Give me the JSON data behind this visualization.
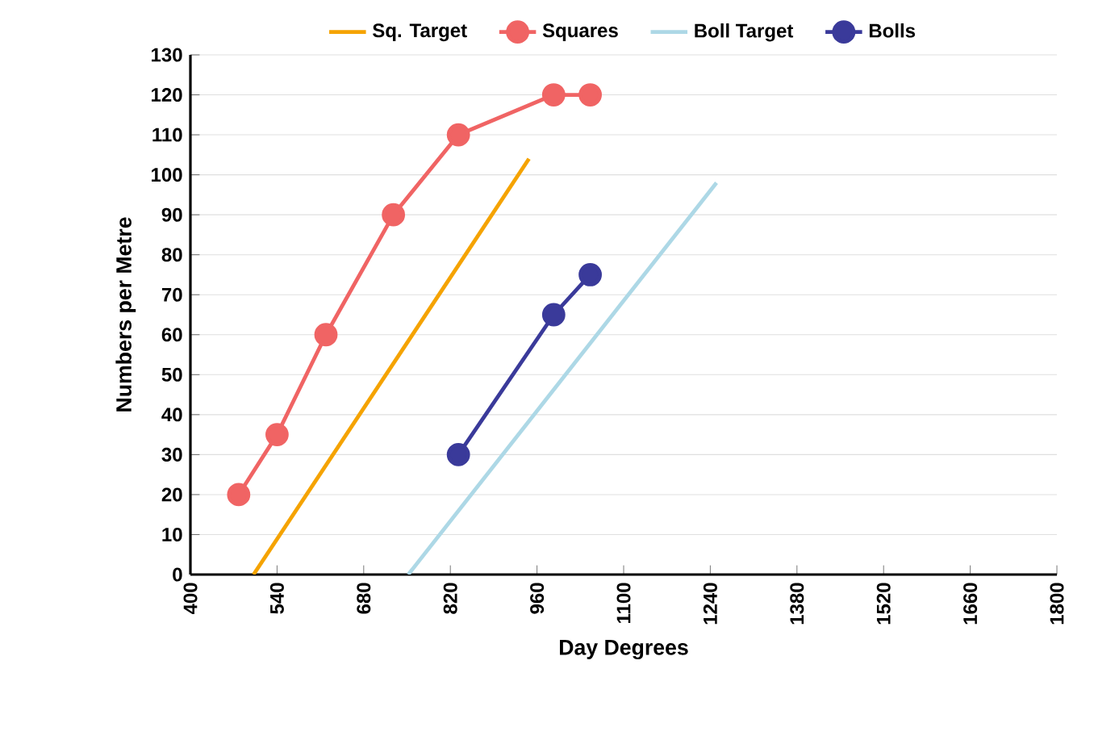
{
  "chart_data": {
    "type": "line",
    "xlabel": "Day Degrees",
    "ylabel": "Numbers per Metre",
    "xlim": [
      400,
      1800
    ],
    "xticks": [
      400,
      540,
      680,
      820,
      960,
      1100,
      1240,
      1380,
      1520,
      1660,
      1800
    ],
    "ylim": [
      0,
      130
    ],
    "yticks": [
      0,
      10,
      20,
      30,
      40,
      50,
      60,
      70,
      80,
      90,
      100,
      110,
      120,
      130
    ],
    "grid": "y",
    "legend": "top",
    "marker": "circle",
    "series": [
      {
        "name": "Sq. Target",
        "color": "#f5a300",
        "marker": "none",
        "x": [
          502,
          947
        ],
        "values": [
          0,
          104
        ]
      },
      {
        "name": "Squares",
        "color": "#f06464",
        "x": [
          478,
          540,
          619,
          728,
          833,
          987,
          1046
        ],
        "values": [
          20,
          35,
          60,
          90,
          110,
          120,
          120
        ]
      },
      {
        "name": "Boll Target",
        "color": "#add8e6",
        "marker": "none",
        "x": [
          752,
          1250
        ],
        "values": [
          0,
          98
        ]
      },
      {
        "name": "Bolls",
        "color": "#3a3a9a",
        "x": [
          833,
          987,
          1046
        ],
        "values": [
          30,
          65,
          75
        ]
      }
    ]
  }
}
